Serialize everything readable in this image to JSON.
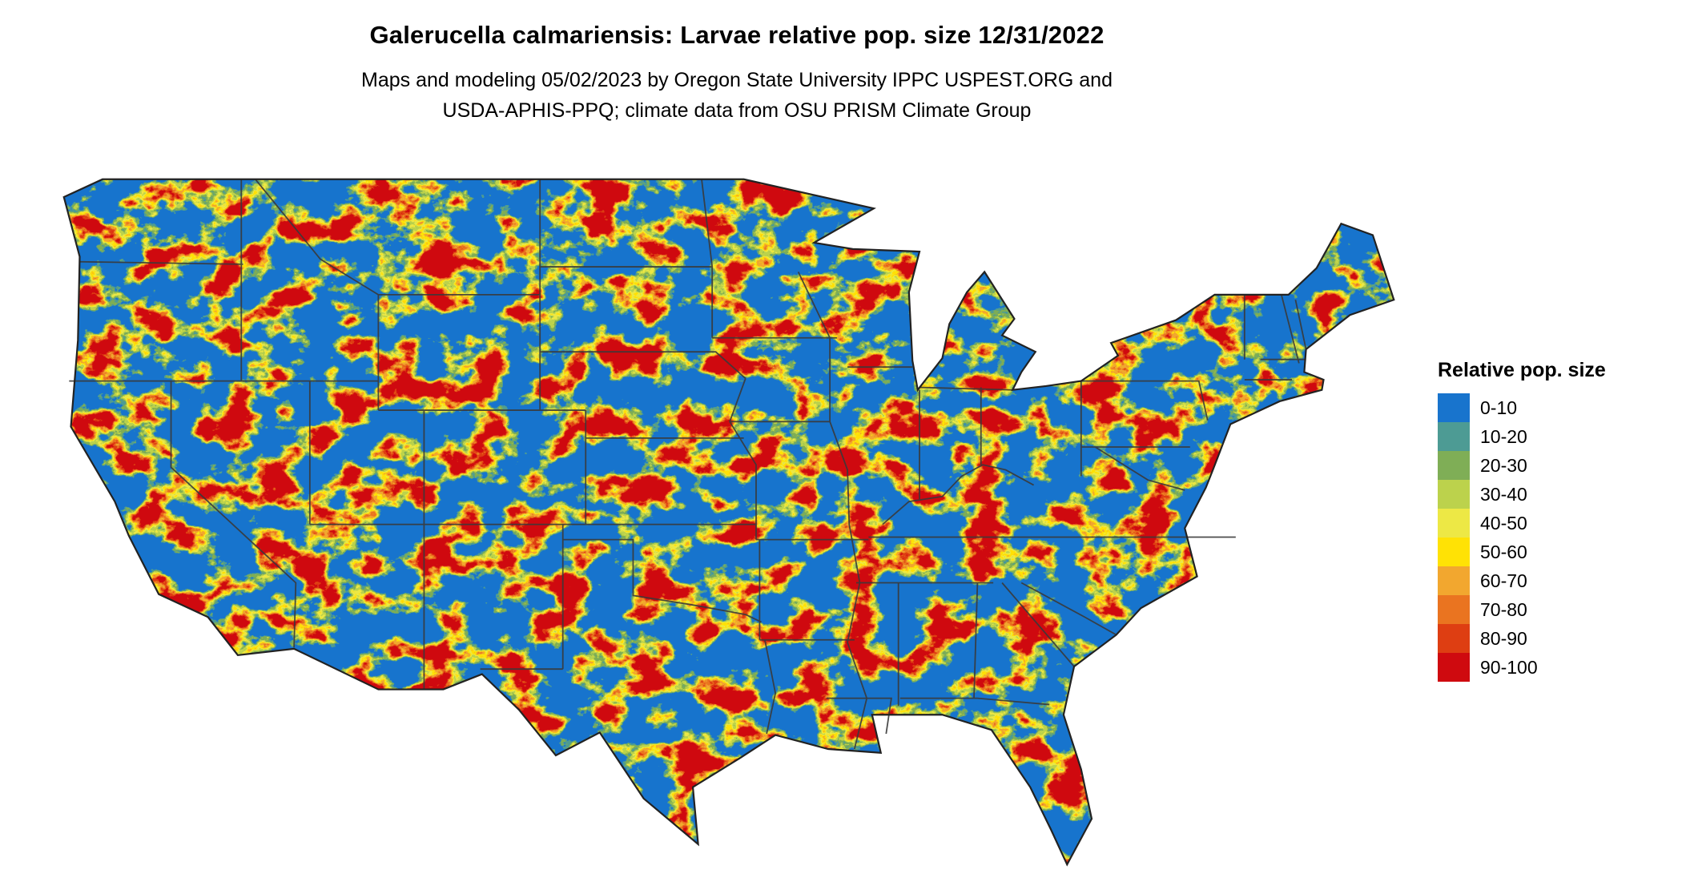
{
  "title": "Galerucella calmariensis: Larvae relative pop. size 12/31/2022",
  "subtitle_line1": "Maps and modeling 05/02/2023 by Oregon State University IPPC USPEST.ORG and",
  "subtitle_line2": "USDA-APHIS-PPQ; climate data from OSU PRISM Climate Group",
  "map": {
    "region": "Contiguous United States",
    "base_color": "#1874CD",
    "border_color": "#3A3A3A",
    "outline_color": "#222222",
    "background": "#FFFFFF"
  },
  "legend": {
    "title": "Relative pop. size",
    "items": [
      {
        "label": "0-10",
        "color": "#1874CD"
      },
      {
        "label": "10-20",
        "color": "#4D9B94"
      },
      {
        "label": "20-30",
        "color": "#7FAE56"
      },
      {
        "label": "30-40",
        "color": "#BCD24C"
      },
      {
        "label": "40-50",
        "color": "#EDE845"
      },
      {
        "label": "50-60",
        "color": "#FFE205"
      },
      {
        "label": "60-70",
        "color": "#F2A72F"
      },
      {
        "label": "70-80",
        "color": "#EA7420"
      },
      {
        "label": "80-90",
        "color": "#DE3E12"
      },
      {
        "label": "90-100",
        "color": "#CF0A0F"
      }
    ]
  }
}
